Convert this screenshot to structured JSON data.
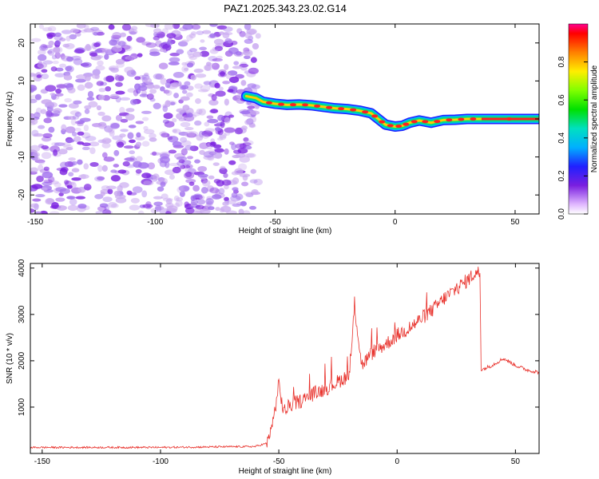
{
  "title": "PAZ1.2025.343.23.02.G14",
  "colors": {
    "snr_line": "#e8302a",
    "axis": "#000000",
    "noise_dark": "#7a1fe0",
    "noise_light": "#c9a8f0"
  },
  "chart_data": [
    {
      "type": "heatmap",
      "name": "spectrogram",
      "title": "PAZ1.2025.343.23.02.G14",
      "xlabel": "Height of straight line (km)",
      "ylabel": "Frequency (Hz)",
      "xlim": [
        -152,
        60
      ],
      "ylim": [
        -25,
        25
      ],
      "xticks": [
        -150,
        -100,
        -50,
        0,
        50
      ],
      "yticks": [
        -20,
        -10,
        0,
        10,
        20
      ],
      "noise_region_x": [
        -152,
        -57
      ],
      "signal_ridge": {
        "x": [
          -62,
          -58,
          -55,
          -50,
          -45,
          -40,
          -35,
          -30,
          -25,
          -20,
          -15,
          -10,
          -7,
          -4,
          0,
          3,
          6,
          10,
          15,
          20,
          25,
          30,
          35,
          60
        ],
        "frequency_hz": [
          6,
          5.5,
          4.5,
          4,
          3.7,
          3.8,
          3.6,
          3.2,
          2.8,
          2.6,
          2.2,
          1.5,
          0,
          -1.5,
          -2,
          -1.8,
          -1,
          -0.4,
          -1,
          -0.3,
          -0.2,
          0,
          0,
          0
        ]
      },
      "colorbar": {
        "label": "Normalized spectral amplitude",
        "range": [
          0,
          1
        ],
        "ticks": [
          "0.0",
          "0.2",
          "0.4",
          "0.6",
          "0.8"
        ]
      }
    },
    {
      "type": "line",
      "name": "snr",
      "xlabel": "Height of straight line (km)",
      "ylabel": "SNR (10 * v/v)",
      "xlim": [
        -155,
        60
      ],
      "ylim": [
        0,
        4100
      ],
      "xticks": [
        -150,
        -100,
        -50,
        0,
        50
      ],
      "yticks": [
        1000,
        2000,
        3000,
        4000
      ],
      "series": [
        {
          "name": "SNR",
          "x": [
            -155,
            -100,
            -60,
            -55,
            -52,
            -50,
            -48,
            -45,
            -40,
            -35,
            -30,
            -25,
            -20,
            -18,
            -15,
            -10,
            -5,
            0,
            5,
            10,
            15,
            20,
            25,
            30,
            33,
            35,
            35.5,
            40,
            45,
            50,
            55,
            60
          ],
          "y": [
            130,
            130,
            150,
            220,
            800,
            1500,
            900,
            1050,
            1150,
            1300,
            1400,
            1550,
            1700,
            3200,
            1900,
            2200,
            2350,
            2550,
            2700,
            2900,
            3100,
            3350,
            3550,
            3750,
            3900,
            3900,
            1800,
            1900,
            2050,
            1900,
            1800,
            1750
          ]
        }
      ]
    }
  ]
}
